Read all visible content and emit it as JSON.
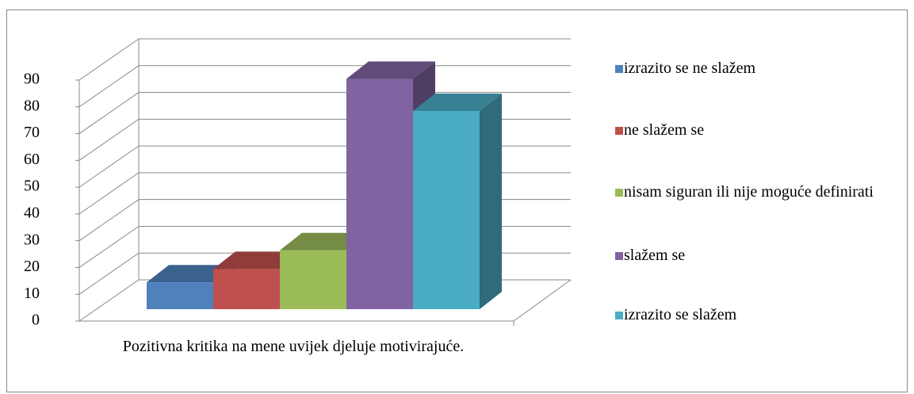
{
  "chart_data": {
    "type": "bar3d",
    "categories": [
      "Pozitivna kritika na mene uvijek djeluje motivirajuće."
    ],
    "series": [
      {
        "name": "izrazito se ne slažem",
        "color": "#4f81bd",
        "values": [
          10
        ]
      },
      {
        "name": "ne slažem se",
        "color": "#c0504d",
        "values": [
          15
        ]
      },
      {
        "name": "nisam siguran ili nije moguće definirati",
        "color": "#9bbb59",
        "values": [
          22
        ]
      },
      {
        "name": "slažem se",
        "color": "#8064a2",
        "values": [
          86
        ]
      },
      {
        "name": "izrazito se slažem",
        "color": "#4bacc6",
        "values": [
          74
        ]
      }
    ],
    "ylim": [
      0,
      90
    ],
    "yticks": [
      0,
      10,
      20,
      30,
      40,
      50,
      60,
      70,
      80,
      90
    ],
    "grid": true,
    "legend": "right"
  }
}
